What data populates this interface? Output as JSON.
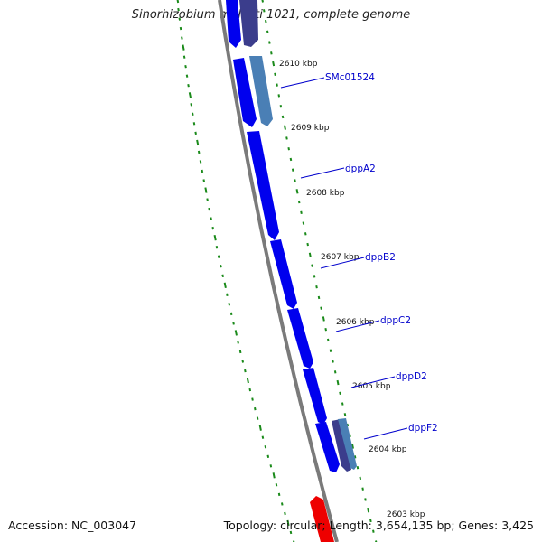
{
  "title": "Sinorhizobium meliloti 1021, complete genome",
  "footer": {
    "accession": "Accession: NC_003047",
    "stats": "Topology: circular; Length: 3,654,135 bp; Genes: 3,425"
  },
  "colors": {
    "backbone": "#7a7a7a",
    "forward_gene": "#0000ee",
    "reverse_gene": "#4a7fb5",
    "reverse_gene_dark": "#3b3d8c",
    "rna_gene": "#ee0000",
    "gc_ticks": "#1a8a1a",
    "label_line": "#0000cc"
  },
  "ticks": [
    {
      "label": "2610 kbp"
    },
    {
      "label": "2609 kbp"
    },
    {
      "label": "2608 kbp"
    },
    {
      "label": "2607 kbp"
    },
    {
      "label": "2606 kbp"
    },
    {
      "label": "2605 kbp"
    },
    {
      "label": "2604 kbp"
    },
    {
      "label": "2603 kbp"
    }
  ],
  "genes": [
    {
      "name": "SMc01524",
      "strand": "reverse"
    },
    {
      "name": "dppA2",
      "strand": "forward"
    },
    {
      "name": "dppB2",
      "strand": "forward"
    },
    {
      "name": "dppC2",
      "strand": "forward"
    },
    {
      "name": "dppD2",
      "strand": "forward"
    },
    {
      "name": "dppF2",
      "strand": "reverse"
    }
  ]
}
